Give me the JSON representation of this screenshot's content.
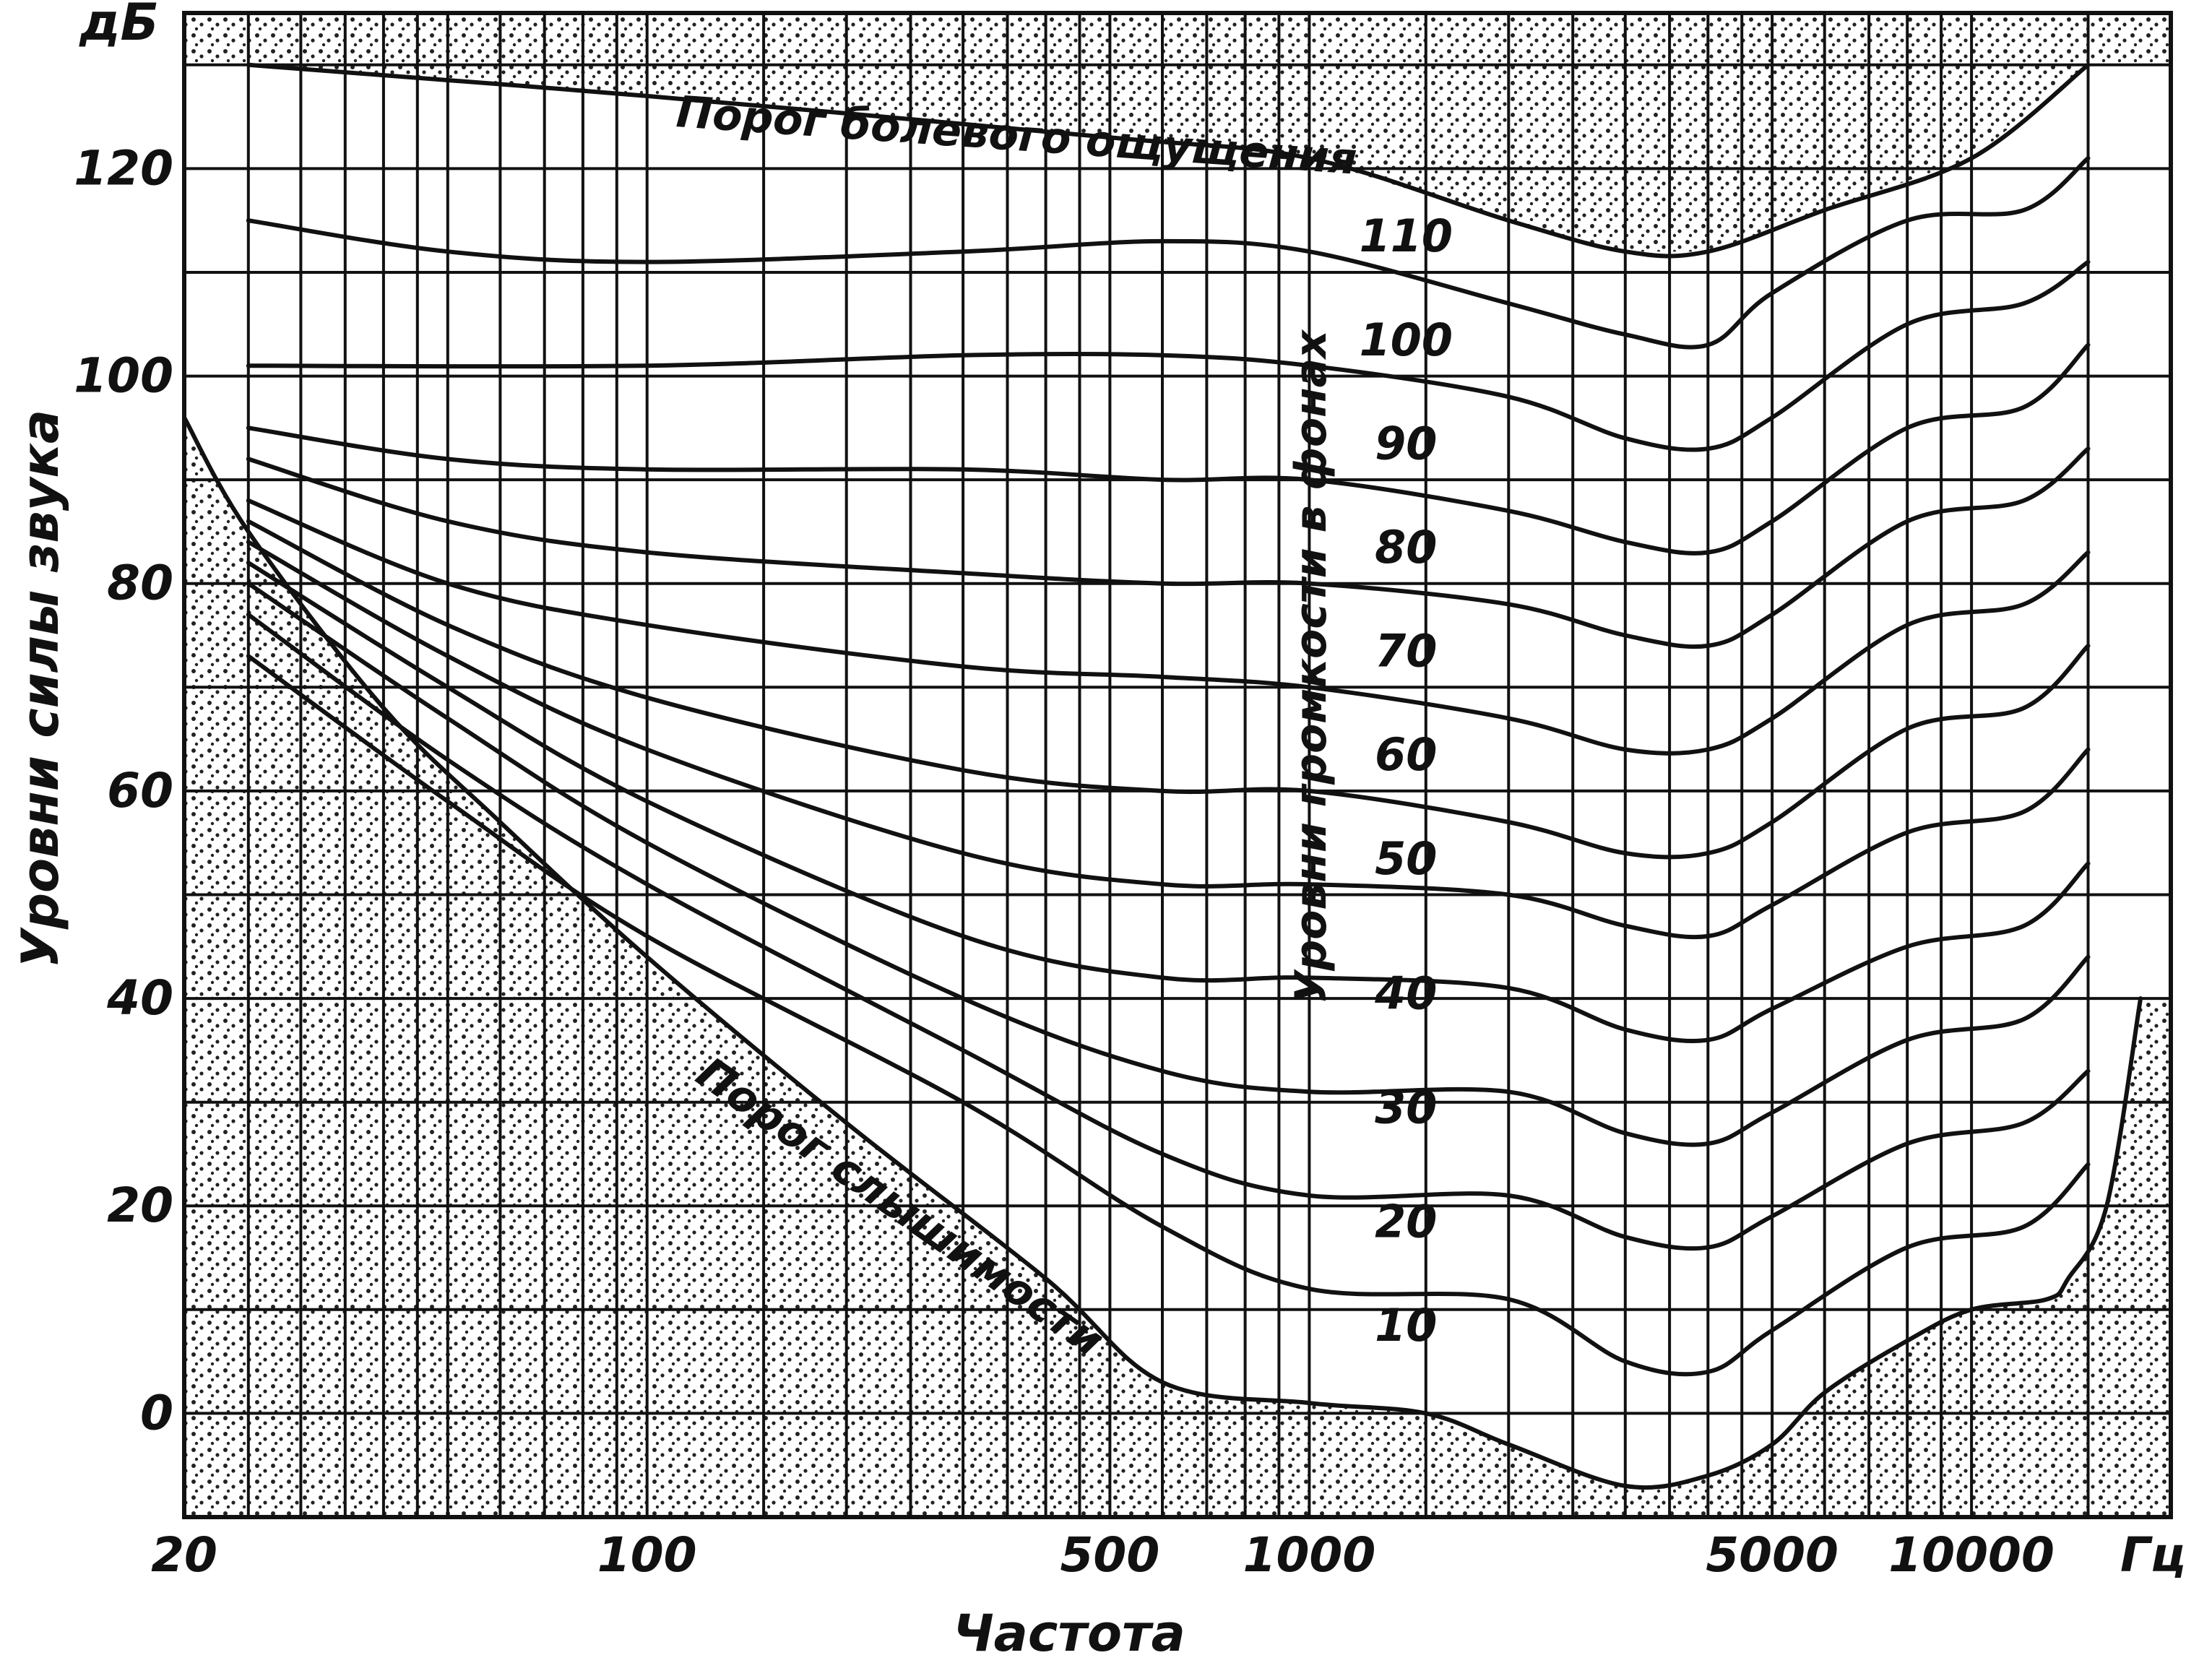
{
  "chart_data": {
    "type": "line",
    "ylabel_unit": "дБ",
    "ylabel": "Уровни силы звука",
    "xlabel": "Частота",
    "xunit": "Гц",
    "x_scale": "log",
    "xlim": [
      20,
      20000
    ],
    "ylim": [
      -10,
      135
    ],
    "grid": true,
    "y_ticks": [
      "0",
      "20",
      "40",
      "60",
      "80",
      "100",
      "120"
    ],
    "x_ticks": [
      "20",
      "100",
      "500",
      "1000",
      "5000",
      "10000"
    ],
    "phon_axis_label": "Уровни громкости в фонах",
    "pain_label": "Порог болевого ощущения",
    "threshold_label": "Порог слышимости",
    "curve_labels": [
      "110",
      "100",
      "90",
      "80",
      "70",
      "60",
      "50",
      "40",
      "30",
      "20",
      "10"
    ],
    "series": [
      {
        "name": "Порог болевого ощущения",
        "x": [
          25,
          100,
          500,
          1000,
          2000,
          3000,
          4000,
          6000,
          10000,
          15000
        ],
        "y": [
          130,
          127,
          123,
          121,
          115,
          112,
          112,
          116,
          121,
          130
        ]
      },
      {
        "name": "110",
        "x": [
          25,
          50,
          100,
          300,
          600,
          1000,
          2000,
          3000,
          4000,
          5000,
          8000,
          12000,
          15000
        ],
        "y": [
          115,
          112,
          111,
          112,
          113,
          112,
          107,
          104,
          103,
          108,
          115,
          116,
          121
        ]
      },
      {
        "name": "100",
        "x": [
          25,
          100,
          300,
          600,
          1000,
          2000,
          3000,
          4000,
          5000,
          8000,
          12000,
          15000
        ],
        "y": [
          101,
          101,
          102,
          102,
          101,
          98,
          94,
          93,
          96,
          105,
          107,
          111
        ]
      },
      {
        "name": "90",
        "x": [
          25,
          50,
          100,
          300,
          600,
          1000,
          2000,
          3000,
          4000,
          5000,
          8000,
          12000,
          15000
        ],
        "y": [
          95,
          92,
          91,
          91,
          90,
          90,
          87,
          84,
          83,
          86,
          95,
          97,
          103
        ]
      },
      {
        "name": "80",
        "x": [
          25,
          50,
          100,
          300,
          600,
          1000,
          2000,
          3000,
          4000,
          5000,
          8000,
          12000,
          15000
        ],
        "y": [
          92,
          86,
          83,
          81,
          80,
          80,
          78,
          75,
          74,
          77,
          86,
          88,
          93
        ]
      },
      {
        "name": "70",
        "x": [
          25,
          50,
          100,
          300,
          600,
          1000,
          2000,
          3000,
          4000,
          5000,
          8000,
          12000,
          15000
        ],
        "y": [
          88,
          80,
          76,
          72,
          71,
          70,
          67,
          64,
          64,
          67,
          76,
          78,
          83
        ]
      },
      {
        "name": "60",
        "x": [
          25,
          50,
          100,
          300,
          600,
          1000,
          2000,
          3000,
          4000,
          5000,
          8000,
          12000,
          15000
        ],
        "y": [
          86,
          76,
          69,
          62,
          60,
          60,
          57,
          54,
          54,
          57,
          66,
          68,
          74
        ]
      },
      {
        "name": "50",
        "x": [
          25,
          50,
          100,
          300,
          600,
          1000,
          2000,
          3000,
          4000,
          5000,
          8000,
          12000,
          15000
        ],
        "y": [
          84,
          73,
          64,
          54,
          51,
          51,
          50,
          47,
          46,
          49,
          56,
          58,
          64
        ]
      },
      {
        "name": "40",
        "x": [
          25,
          50,
          100,
          300,
          600,
          1000,
          2000,
          3000,
          4000,
          5000,
          8000,
          12000,
          15000
        ],
        "y": [
          82,
          70,
          59,
          46,
          42,
          42,
          41,
          37,
          36,
          39,
          45,
          47,
          53
        ]
      },
      {
        "name": "30",
        "x": [
          25,
          50,
          100,
          300,
          600,
          1000,
          2000,
          3000,
          4000,
          5000,
          8000,
          12000,
          15000
        ],
        "y": [
          80,
          67,
          55,
          40,
          33,
          31,
          31,
          27,
          26,
          29,
          36,
          38,
          44
        ]
      },
      {
        "name": "20",
        "x": [
          25,
          50,
          100,
          300,
          600,
          1000,
          2000,
          3000,
          4000,
          5000,
          8000,
          12000,
          15000
        ],
        "y": [
          77,
          63,
          51,
          35,
          25,
          21,
          21,
          17,
          16,
          19,
          26,
          28,
          33
        ]
      },
      {
        "name": "10",
        "x": [
          25,
          50,
          100,
          300,
          600,
          1000,
          2000,
          3000,
          4000,
          5000,
          8000,
          12000,
          15000
        ],
        "y": [
          73,
          59,
          46,
          30,
          18,
          12,
          11,
          5,
          4,
          8,
          16,
          18,
          24
        ]
      },
      {
        "name": "Порог слышимости",
        "x": [
          20,
          25,
          40,
          60,
          100,
          200,
          400,
          600,
          1000,
          1500,
          2000,
          3000,
          4000,
          5000,
          6000,
          8000,
          10000,
          13000,
          14000,
          16000,
          18000
        ],
        "y": [
          96,
          85,
          68,
          57,
          44,
          28,
          13,
          3,
          1,
          0,
          -3,
          -7,
          -6,
          -3,
          2,
          7,
          10,
          11,
          13,
          20,
          40
        ]
      }
    ]
  }
}
